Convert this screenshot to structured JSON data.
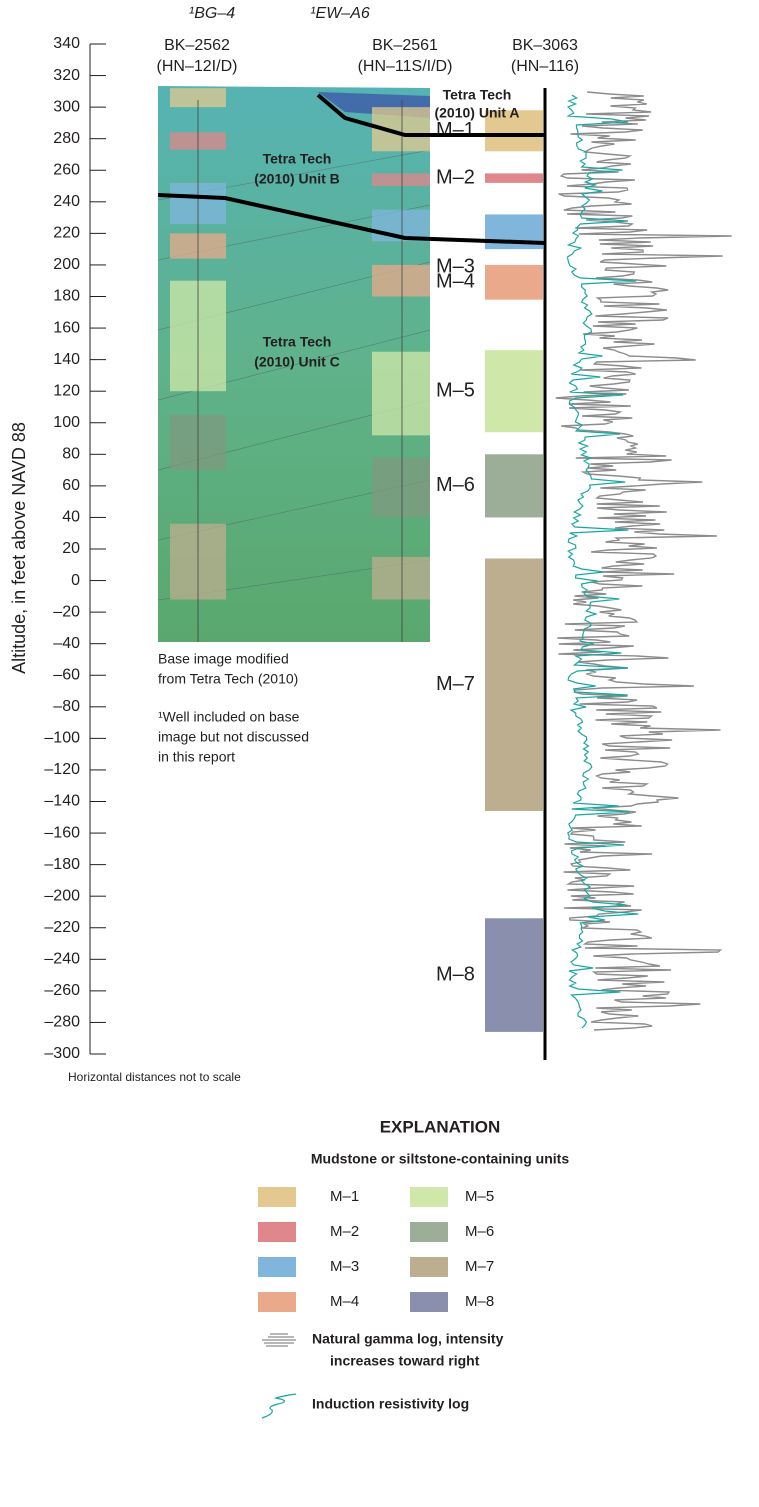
{
  "chart_data": {
    "type": "section",
    "y_label": "Altitude, in feet above NAVD 88",
    "ylim": [
      -300,
      340
    ],
    "yticks": [
      340,
      320,
      300,
      280,
      260,
      240,
      220,
      200,
      180,
      160,
      140,
      120,
      100,
      80,
      60,
      40,
      20,
      0,
      {
        "value": -20,
        "label": "–20"
      },
      {
        "value": -40,
        "label": "–40"
      },
      {
        "value": -60,
        "label": "–60"
      },
      {
        "value": -80,
        "label": "–80"
      },
      {
        "value": -100,
        "label": "–100"
      },
      {
        "value": -120,
        "label": "–120"
      },
      {
        "value": -140,
        "label": "–140"
      },
      {
        "value": -160,
        "label": "–160"
      },
      {
        "value": -180,
        "label": "–180"
      },
      {
        "value": -200,
        "label": "–200"
      },
      {
        "value": -220,
        "label": "–220"
      },
      {
        "value": -240,
        "label": "–240"
      },
      {
        "value": -260,
        "label": "–260"
      },
      {
        "value": -280,
        "label": "–280"
      },
      {
        "value": -300,
        "label": "–300"
      }
    ],
    "top_wells": [
      "¹BG–4",
      "¹EW–A6"
    ],
    "units": [
      {
        "name": "M–1",
        "color": "#e3c98f",
        "top": 298,
        "bottom": 272
      },
      {
        "name": "M–2",
        "color": "#e0878b",
        "top": 258,
        "bottom": 252
      },
      {
        "name": "M–3",
        "color": "#80b6dc",
        "top": 232,
        "bottom": 210
      },
      {
        "name": "M–4",
        "color": "#eaa98a",
        "top": 200,
        "bottom": 178
      },
      {
        "name": "M–5",
        "color": "#cfe8aa",
        "top": 146,
        "bottom": 94
      },
      {
        "name": "M–6",
        "color": "#9cae98",
        "top": 80,
        "bottom": 40
      },
      {
        "name": "M–7",
        "color": "#bdae8f",
        "top": 14,
        "bottom": -146
      },
      {
        "name": "M–8",
        "color": "#8a8fae",
        "top": -214,
        "bottom": -286
      }
    ],
    "wells": [
      {
        "name": "BK–2562",
        "id": "(HN–12I/D)",
        "intervals": [
          {
            "color": "#e3c98f",
            "top": 312,
            "bottom": 300
          },
          {
            "color": "#e0878b",
            "top": 284,
            "bottom": 273
          },
          {
            "color": "#80b6dc",
            "top": 252,
            "bottom": 226
          },
          {
            "color": "#eaa98a",
            "top": 220,
            "bottom": 204
          },
          {
            "color": "#cfe8aa",
            "top": 190,
            "bottom": 120
          },
          {
            "color": "#7f9a80",
            "top": 105,
            "bottom": 70
          },
          {
            "color": "#bdae8f",
            "top": 36,
            "bottom": -12
          }
        ]
      },
      {
        "name": "BK–2561",
        "id": "(HN–11S/I/D)",
        "intervals": [
          {
            "color": "#e3c98f",
            "top": 300,
            "bottom": 272
          },
          {
            "color": "#e0878b",
            "top": 258,
            "bottom": 250
          },
          {
            "color": "#80b6dc",
            "top": 235,
            "bottom": 215
          },
          {
            "color": "#eaa98a",
            "top": 200,
            "bottom": 180
          },
          {
            "color": "#cfe8aa",
            "top": 145,
            "bottom": 92
          },
          {
            "color": "#7f9a80",
            "top": 78,
            "bottom": 40
          },
          {
            "color": "#bdae8f",
            "top": 15,
            "bottom": -12
          }
        ]
      },
      {
        "name": "BK–3063",
        "id": "(HN–116)",
        "intervals": []
      }
    ],
    "annotations": {
      "unit_a": [
        "Tetra Tech",
        "(2010) Unit A"
      ],
      "unit_b": [
        "Tetra Tech",
        "(2010) Unit B"
      ],
      "unit_c": [
        "Tetra Tech",
        "(2010) Unit C"
      ],
      "base": [
        "Base image modified",
        "from Tetra Tech (2010)"
      ],
      "footnote": [
        "¹Well included on base",
        "image but not discussed",
        "in this report"
      ],
      "scale": "Horizontal distances not to scale"
    },
    "legend": {
      "title": "EXPLANATION",
      "subtitle": "Mudstone or siltstone-containing units",
      "gamma": [
        "Natural gamma log, intensity",
        "increases toward right"
      ],
      "resistivity": "Induction resistivity log"
    }
  }
}
